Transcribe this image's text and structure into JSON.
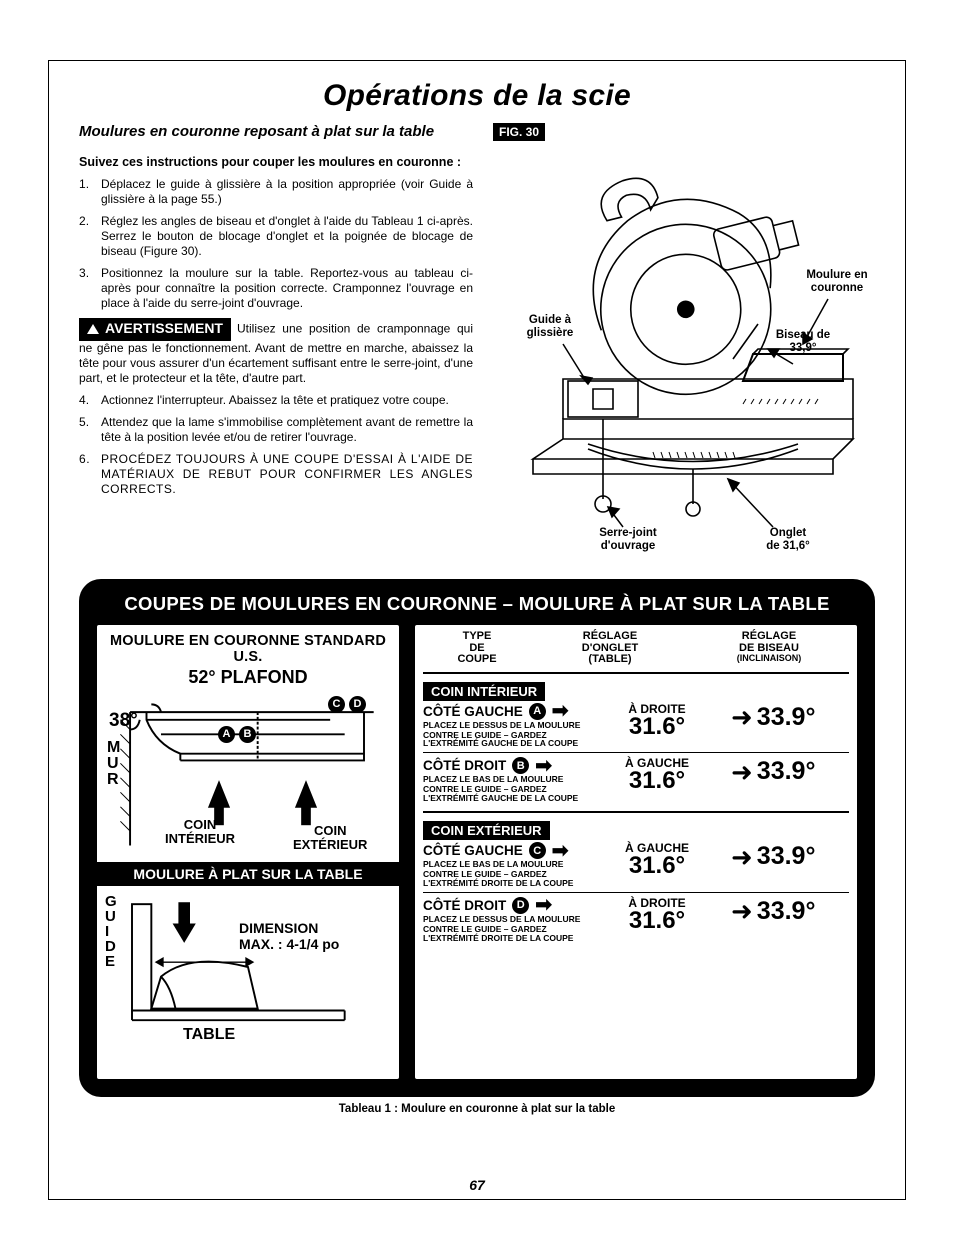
{
  "page": {
    "title": "Opérations de la scie",
    "subhead": "Moulures en couronne reposant à plat sur la table",
    "lead": "Suivez ces instructions pour couper les moulures en couronne :",
    "page_number": "67",
    "colors": {
      "text": "#000000",
      "bg": "#ffffff",
      "panel_bg": "#000000"
    }
  },
  "steps": {
    "s1": "Déplacez le guide à glissière à la position appropriée (voir Guide à glissière à la page 55.)",
    "s2": "Réglez les angles de biseau et d'onglet à l'aide du Tableau 1 ci-après. Serrez le bouton de blocage d'onglet et la poignée de blocage de biseau (Figure 30).",
    "s3": "Positionnez la moulure sur la table. Reportez-vous au tableau ci-après pour connaître la position correcte. Cramponnez l'ouvrage en place à l'aide du serre-joint d'ouvrage.",
    "warn_label": "AVERTISSEMENT",
    "warn_text": "Utilisez une position de cramponnage qui ne gêne pas le fonctionnement. Avant de mettre en marche, abaissez la tête pour vous assurer d'un écartement suffisant entre le serre-joint, d'une part, et le protecteur et la tête, d'autre part.",
    "s4": "Actionnez l'interrupteur. Abaissez la tête et pratiquez votre coupe.",
    "s5": "Attendez que la lame s'immobilise complètement avant de remettre la tête à la position levée et/ou de retirer l'ouvrage.",
    "s6": "PROCÉDEZ TOUJOURS À UNE COUPE D'ESSAI À L'AIDE DE MATÉRIAUX DE REBUT POUR CONFIRMER LES ANGLES CORRECTS."
  },
  "figure": {
    "label": "FIG. 30",
    "captions": {
      "guide": "Guide à\nglissière",
      "moulure": "Moulure en\ncouronne",
      "biseau": "Biseau de\n33,9°",
      "serre": "Serre-joint\nd'ouvrage",
      "onglet": "Onglet\nde 31,6°"
    }
  },
  "panel": {
    "title": "COUPES DE MOULURES EN COURONNE – MOULURE À PLAT SUR LA TABLE",
    "caption": "Tableau 1 : Moulure en couronne à plat sur la table",
    "left": {
      "head": "MOULURE EN COURONNE STANDARD U.S.",
      "ceiling_angle": "52°",
      "ceiling_label": "PLAFOND",
      "wall_angle": "38°",
      "wall_letters": "MUR",
      "inner_label": "COIN\nINTÉRIEUR",
      "outer_label": "COIN\nEXTÉRIEUR",
      "badges": {
        "a": "A",
        "b": "B",
        "c": "C",
        "d": "D"
      },
      "flat_bar": "MOULURE À PLAT SUR LA TABLE",
      "guide_letters": "GUIDE",
      "dim_label": "DIMENSION\nMAX. : 4-1/4 po",
      "table_label": "TABLE"
    },
    "right": {
      "h1": "TYPE\nDE\nCOUPE",
      "h2": "RÉGLAGE\nD'ONGLET\n(TABLE)",
      "h3": "RÉGLAGE\nDE BISEAU",
      "h3_small": "(INCLINAISON)",
      "sec_int": "COIN INTÉRIEUR",
      "sec_ext": "COIN EXTÉRIEUR",
      "rows": {
        "a": {
          "side": "CÔTÉ GAUCHE",
          "badge": "A",
          "dir": "À DROITE",
          "miter": "31.6°",
          "bevel": "33.9°",
          "note1": "PLACEZ LE DESSUS DE LA MOULURE",
          "note2": "CONTRE LE GUIDE – GARDEZ L'EXTRÉMITÉ GAUCHE DE LA COUPE"
        },
        "b": {
          "side": "CÔTÉ DROIT",
          "badge": "B",
          "dir": "À GAUCHE",
          "miter": "31.6°",
          "bevel": "33.9°",
          "note1": "PLACEZ LE BAS DE LA MOULURE",
          "note2": "CONTRE LE GUIDE – GARDEZ L'EXTRÉMITÉ GAUCHE DE LA COUPE"
        },
        "c": {
          "side": "CÔTÉ GAUCHE",
          "badge": "C",
          "dir": "À GAUCHE",
          "miter": "31.6°",
          "bevel": "33.9°",
          "note1": "PLACEZ LE BAS DE LA MOULURE",
          "note2": "CONTRE LE GUIDE – GARDEZ L'EXTRÉMITÉ DROITE DE LA COUPE"
        },
        "d": {
          "side": "CÔTÉ DROIT",
          "badge": "D",
          "dir": "À DROITE",
          "miter": "31.6°",
          "bevel": "33.9°",
          "note1": "PLACEZ LE DESSUS DE LA MOULURE",
          "note2": "CONTRE LE GUIDE – GARDEZ L'EXTRÉMITÉ DROITE DE LA COUPE"
        }
      }
    }
  }
}
